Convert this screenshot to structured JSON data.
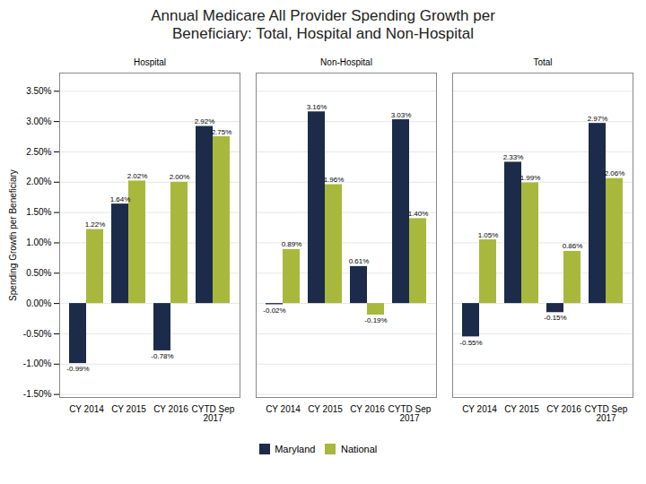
{
  "chart_data": {
    "type": "bar",
    "title": "Annual Medicare All Provider Spending Growth per\nBeneficiary: Total, Hospital and Non-Hospital",
    "ylabel": "Spending Growth per Beneficiary",
    "groups": [
      "Hospital",
      "Non-Hospital",
      "Total"
    ],
    "categories": [
      "CY 2014",
      "CY 2015",
      "CY 2016",
      "CYTD Sep\n2017"
    ],
    "series": [
      {
        "name": "Maryland",
        "color": "#1c2b4a",
        "values": [
          [
            -0.0099,
            0.0164,
            -0.0078,
            0.0292
          ],
          [
            -0.0002,
            0.0316,
            0.0061,
            0.0303
          ],
          [
            -0.0055,
            0.0233,
            -0.0015,
            0.0297
          ]
        ],
        "value_labels": [
          [
            "-0.99%",
            "1.64%",
            "-0.78%",
            "2.92%"
          ],
          [
            "-0.02%",
            "3.16%",
            "0.61%",
            "3.03%"
          ],
          [
            "-0.55%",
            "2.33%",
            "-0.15%",
            "2.97%"
          ]
        ]
      },
      {
        "name": "National",
        "color": "#a8b83c",
        "values": [
          [
            0.0122,
            0.0202,
            0.02,
            0.0275
          ],
          [
            0.0089,
            0.0196,
            -0.0019,
            0.014
          ],
          [
            0.0105,
            0.0199,
            0.0086,
            0.0206
          ]
        ],
        "value_labels": [
          [
            "1.22%",
            "2.02%",
            "2.00%",
            "2.75%"
          ],
          [
            "0.89%",
            "1.96%",
            "-0.19%",
            "1.40%"
          ],
          [
            "1.05%",
            "1.99%",
            "0.86%",
            "2.06%"
          ]
        ]
      }
    ],
    "ylim": [
      -0.0155,
      0.038
    ],
    "yticks": [
      {
        "value": -0.015,
        "label": "-1.50%"
      },
      {
        "value": -0.01,
        "label": "-1.00%"
      },
      {
        "value": -0.005,
        "label": "-0.50%"
      },
      {
        "value": 0,
        "label": "0.00%"
      },
      {
        "value": 0.005,
        "label": "0.50%"
      },
      {
        "value": 0.01,
        "label": "1.00%"
      },
      {
        "value": 0.015,
        "label": "1.50%"
      },
      {
        "value": 0.02,
        "label": "2.00%"
      },
      {
        "value": 0.025,
        "label": "2.50%"
      },
      {
        "value": 0.03,
        "label": "3.00%"
      },
      {
        "value": 0.035,
        "label": "3.50%"
      }
    ],
    "grid": true,
    "legend": "bottom",
    "data_labels": true
  }
}
